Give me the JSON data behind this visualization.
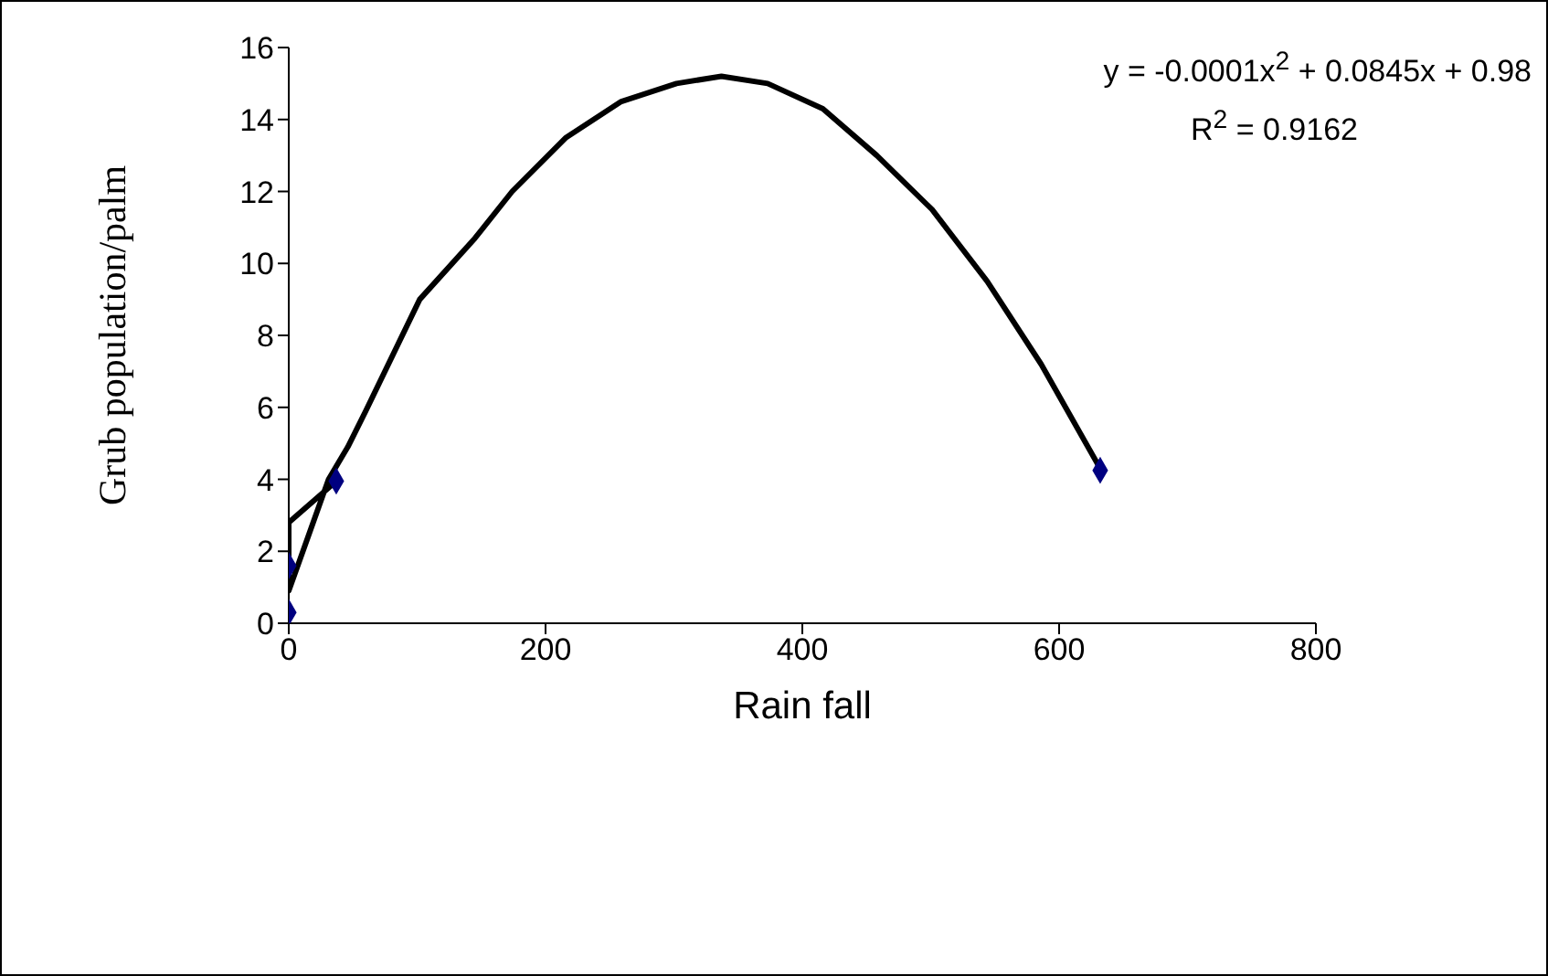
{
  "chart_data": {
    "type": "scatter",
    "xlabel": "Rain fall",
    "ylabel": "Grub population/palm",
    "xlim": [
      0,
      800
    ],
    "xticks": [
      0,
      200,
      400,
      600,
      800
    ],
    "ylim": [
      0,
      16
    ],
    "yticks": [
      0,
      2,
      4,
      6,
      8,
      10,
      12,
      14,
      16
    ],
    "grid": false,
    "legend": false,
    "annotations": [
      "y = -0.0001x$^{2}$ + 0.0845x + 0.98",
      "R$^{2}$ = 0.9162"
    ],
    "series": [
      {
        "color": "#000080",
        "marker": "diamond",
        "x": [
          0,
          0,
          37,
          632
        ],
        "values": [
          0.3,
          1.6,
          3.95,
          4.25
        ]
      },
      {
        "type": "line",
        "marker": "none",
        "color": "#000000",
        "x": [
          37,
          0,
          0,
          17,
          31,
          46,
          60,
          102,
          145,
          174,
          216,
          259,
          302,
          337,
          373,
          416,
          458,
          501,
          544,
          586,
          632
        ],
        "values": [
          3.95,
          2.8,
          0.9,
          2.6,
          4.0,
          4.9,
          5.9,
          9.0,
          10.7,
          12.0,
          13.5,
          14.5,
          15.0,
          15.2,
          15.0,
          14.3,
          13.0,
          11.5,
          9.5,
          7.2,
          4.3
        ]
      }
    ]
  }
}
